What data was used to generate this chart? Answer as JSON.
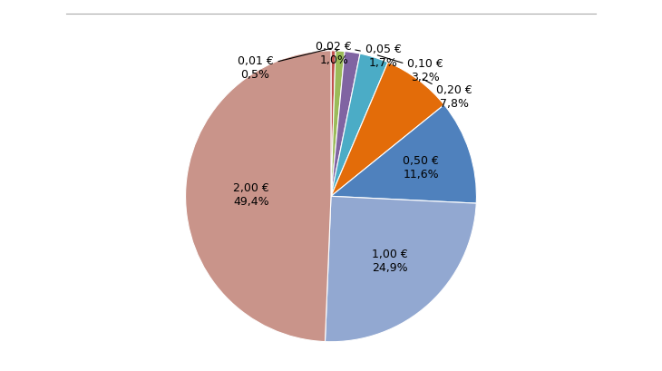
{
  "labels": [
    "0,01 €",
    "0,02 €",
    "0,05 €",
    "0,10 €",
    "0,20 €",
    "0,50 €",
    "1,00 €",
    "2,00 €"
  ],
  "percentages": [
    0.5,
    1.0,
    1.7,
    3.2,
    7.8,
    11.6,
    24.9,
    49.4
  ],
  "pct_strings": [
    "0,5%",
    "1,0%",
    "1,7%",
    "3,2%",
    "7,8%",
    "11,6%",
    "24,9%",
    "49,4%"
  ],
  "colors": [
    "#c0504d",
    "#9bbb59",
    "#8064a2",
    "#4bacc6",
    "#e36c09",
    "#4f81bd",
    "#92a8d1",
    "#c9948a"
  ],
  "background_color": "#ffffff",
  "line_color": "#aaaaaa"
}
